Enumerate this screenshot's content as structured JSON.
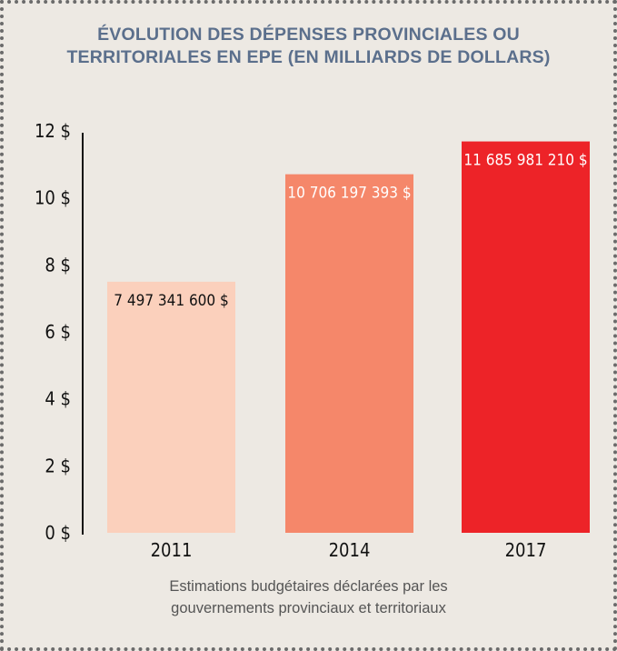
{
  "title": {
    "line1": "ÉVOLUTION DES DÉPENSES PROVINCIALES OU",
    "line2": "TERRITORIALES EN EPE  (EN MILLIARDS DE DOLLARS)"
  },
  "caption": {
    "line1": "Estimations budgétaires déclarées par les",
    "line2": "gouvernements provinciaux et territoriaux"
  },
  "colors": {
    "background": "#ede9e3",
    "title": "#5b6f8c",
    "bars": [
      "#fbd0bc",
      "#f5876a",
      "#ed2328"
    ],
    "label_text": [
      "#111111",
      "#ffffff",
      "#ffffff"
    ]
  },
  "chart_data": {
    "type": "bar",
    "title": "ÉVOLUTION DES DÉPENSES PROVINCIALES OU TERRITORIALES EN EPE  (EN MILLIARDS DE DOLLARS)",
    "xlabel": "",
    "ylabel": "",
    "categories": [
      "2011",
      "2014",
      "2017"
    ],
    "values": [
      7.4973416,
      10.706197393,
      11.68598121
    ],
    "data_labels": [
      "7 497 341 600 $",
      "10 706 197 393 $",
      "11 685 981 210 $"
    ],
    "ylim": [
      0,
      12
    ],
    "yticks": [
      0,
      2,
      4,
      6,
      8,
      10,
      12
    ],
    "ytick_labels": [
      "0 $",
      "2 $",
      "4 $",
      "6 $",
      "8 $",
      "10 $",
      "12 $"
    ],
    "grid": false,
    "legend": "none"
  }
}
